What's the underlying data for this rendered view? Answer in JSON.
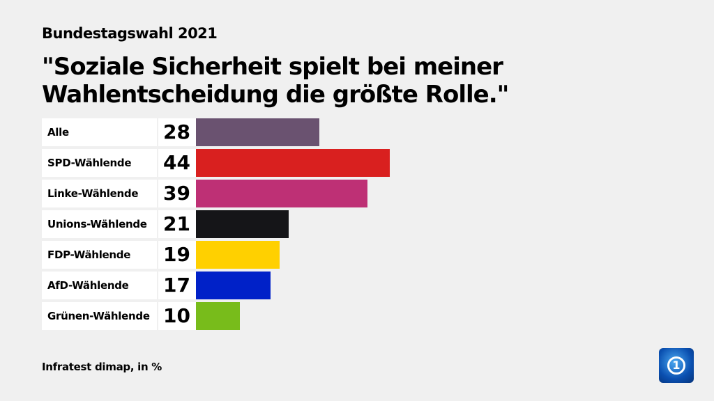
{
  "header": {
    "kicker": "Bundestagswahl 2021",
    "title": "\"Soziale Sicherheit spielt bei meiner Wahlentscheidung die größte Rolle.\""
  },
  "footer": {
    "source": "Infratest dimap, in %",
    "logo": "ARD Das Erste logo"
  },
  "chart_data": {
    "type": "bar",
    "orientation": "horizontal",
    "unit": "%",
    "categories": [
      "Alle",
      "SPD-Wählende",
      "Linke-Wählende",
      "Unions-Wählende",
      "FDP-Wählende",
      "AfD-Wählende",
      "Grünen-Wählende"
    ],
    "values": [
      28,
      44,
      39,
      21,
      19,
      17,
      10
    ],
    "labels": [
      "28",
      "44",
      "39",
      "21",
      "19",
      "17",
      "10"
    ],
    "colors": [
      "#6a5270",
      "#d9201f",
      "#be3075",
      "#151518",
      "#ffd000",
      "#0021c8",
      "#78bc1b"
    ],
    "grid": false
  }
}
